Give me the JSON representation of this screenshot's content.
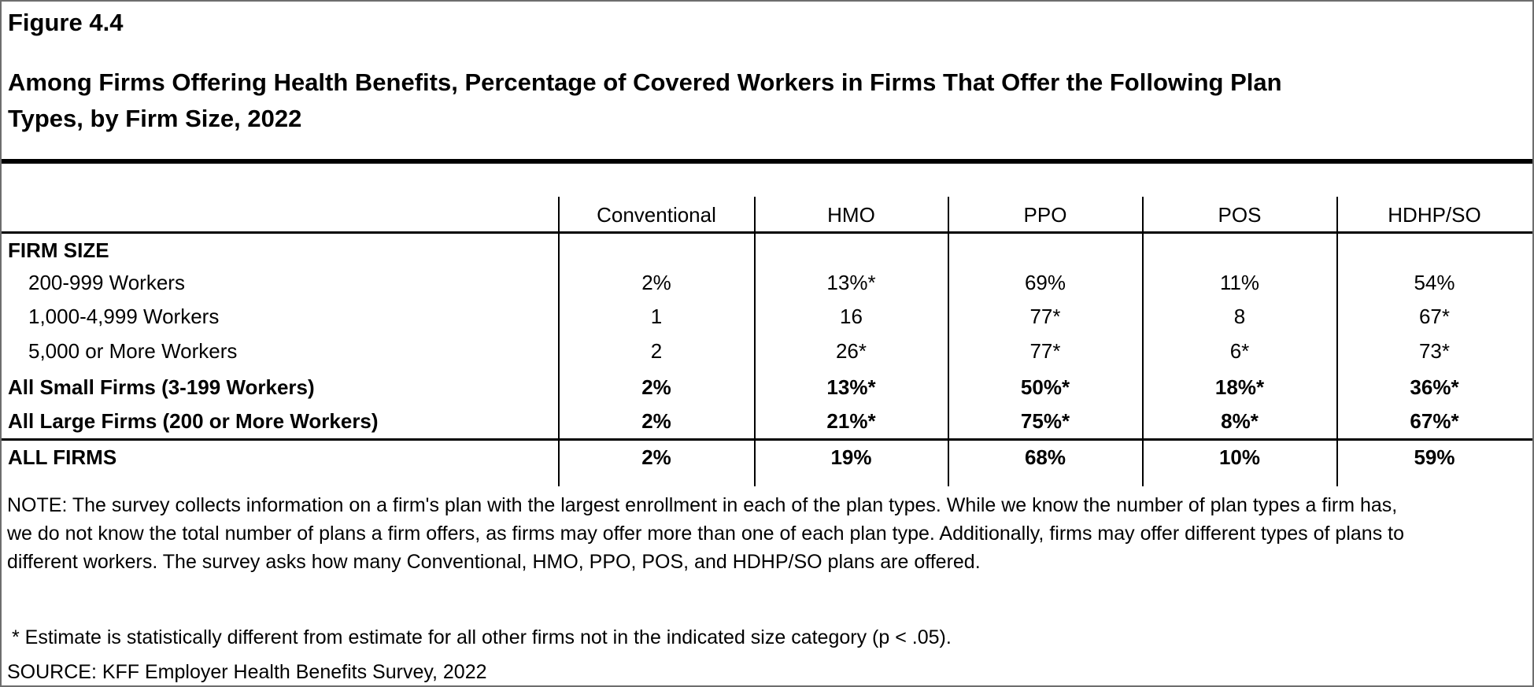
{
  "figure": {
    "label": "Figure 4.4",
    "title_lines": [
      "Among Firms Offering Health Benefits, Percentage of Covered Workers in Firms That Offer the Following Plan",
      "Types, by Firm Size, 2022"
    ]
  },
  "table": {
    "columns": [
      "Conventional",
      "HMO",
      "PPO",
      "POS",
      "HDHP/SO"
    ],
    "section_header": "FIRM SIZE",
    "rows": [
      {
        "label": "200-999 Workers",
        "values": [
          "2%",
          "13%*",
          "69%",
          "11%",
          "54%"
        ]
      },
      {
        "label": "1,000-4,999 Workers",
        "values": [
          "1",
          "16",
          "77*",
          "8",
          "67*"
        ]
      },
      {
        "label": "5,000 or More Workers",
        "values": [
          "2",
          "26*",
          "77*",
          "6*",
          "73*"
        ]
      },
      {
        "label": "All Small Firms (3-199 Workers)",
        "values": [
          "2%",
          "13%*",
          "50%*",
          "18%*",
          "36%*"
        ]
      },
      {
        "label": "All Large Firms (200 or More Workers)",
        "values": [
          "2%",
          "21%*",
          "75%*",
          "8%*",
          "67%*"
        ]
      }
    ],
    "total_row": {
      "label": "ALL FIRMS",
      "values": [
        "2%",
        "19%",
        "68%",
        "10%",
        "59%"
      ]
    }
  },
  "notes": {
    "note_lines": [
      "NOTE: The survey collects information on a firm's plan with the largest enrollment in each of the plan types. While we know the number of plan types a firm has,",
      "we do not know the total number of plans a firm offers, as firms may offer more than one of each plan type. Additionally, firms may offer different types of plans to",
      "different workers. The survey asks how many Conventional, HMO, PPO, POS, and HDHP/SO plans are offered."
    ],
    "footnote": "* Estimate is statistically different from estimate for all other firms not in the indicated size category (p < .05).",
    "source": "SOURCE: KFF Employer Health Benefits Survey, 2022"
  },
  "colors": {
    "text": "#000000",
    "background": "#ffffff",
    "rule": "#000000",
    "frame": "#6e6e6e"
  }
}
